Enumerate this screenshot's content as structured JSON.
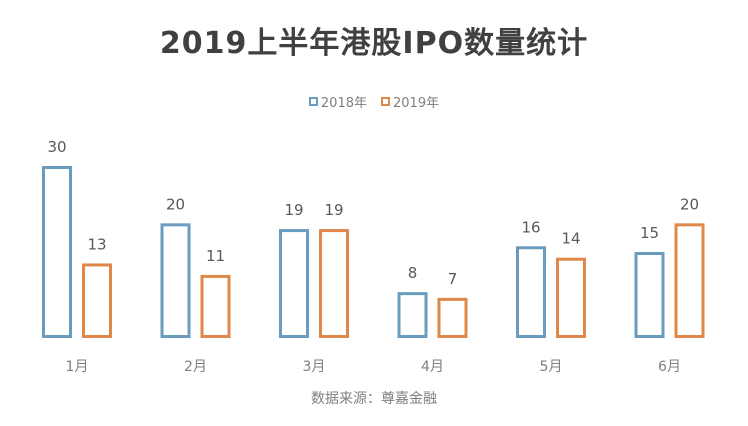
{
  "chart_data": {
    "type": "bar",
    "title": "2019上半年港股IPO数量统计",
    "categories": [
      "1月",
      "2月",
      "3月",
      "4月",
      "5月",
      "6月"
    ],
    "series": [
      {
        "name": "2018年",
        "values": [
          30,
          20,
          19,
          8,
          16,
          15
        ],
        "color": "#6a9cc0"
      },
      {
        "name": "2019年",
        "values": [
          13,
          11,
          19,
          7,
          14,
          20
        ],
        "color": "#e0874a"
      }
    ],
    "xlabel": "",
    "ylabel": "",
    "ylim": [
      0,
      30
    ],
    "grid": false,
    "legend_position": "top-center",
    "source_note": "数据来源：尊嘉金融"
  }
}
